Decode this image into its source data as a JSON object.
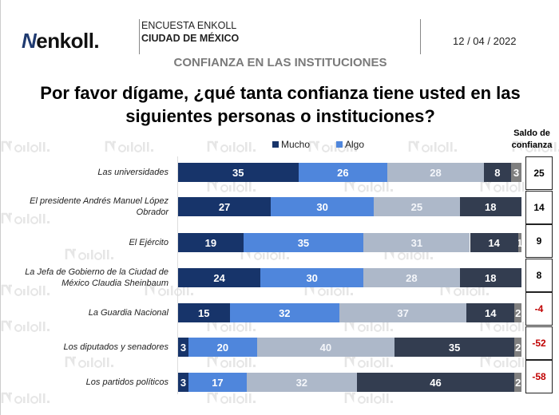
{
  "header": {
    "logo_text": "enkoll.",
    "survey": "ENCUESTA ENKOLL",
    "city": "CIUDAD DE MÉXICO",
    "date": "12 / 04 / 2022"
  },
  "section_title": "CONFIANZA EN LAS INSTITUCIONES",
  "watermark": "enkoll.",
  "chart_data": {
    "type": "bar",
    "orientation": "horizontal-stacked-100",
    "title": "Por favor dígame, ¿qué tanta confianza tiene usted en las siguientes personas o instituciones?",
    "categories": [
      "Las universidades",
      "El presidente Andrés Manuel López Obrador",
      "El Ejército",
      "La Jefa de Gobierno de la Ciudad de México Claudia Sheinbaum",
      "La Guardia Nacional",
      "Los diputados y senadores",
      "Los partidos políticos"
    ],
    "series": [
      {
        "name": "Mucho",
        "color": "#17346a",
        "values": [
          35,
          27,
          19,
          24,
          15,
          3,
          3
        ]
      },
      {
        "name": "Algo",
        "color": "#4f86dc",
        "values": [
          26,
          30,
          35,
          30,
          32,
          20,
          17
        ]
      },
      {
        "color": "#adb8c9",
        "values": [
          28,
          25,
          31,
          28,
          37,
          40,
          32
        ]
      },
      {
        "color": "#333d50",
        "values": [
          8,
          18,
          14,
          18,
          14,
          35,
          46
        ]
      },
      {
        "color": "#7f7f7f",
        "values": [
          3,
          0,
          1,
          0,
          2,
          2,
          2
        ]
      }
    ],
    "xlim": [
      0,
      100
    ],
    "legend": "top",
    "saldo": {
      "title": "Saldo de confianza",
      "values": [
        25,
        14,
        9,
        8,
        -4,
        -52,
        -58
      ],
      "negative_color": "#c00000"
    }
  }
}
